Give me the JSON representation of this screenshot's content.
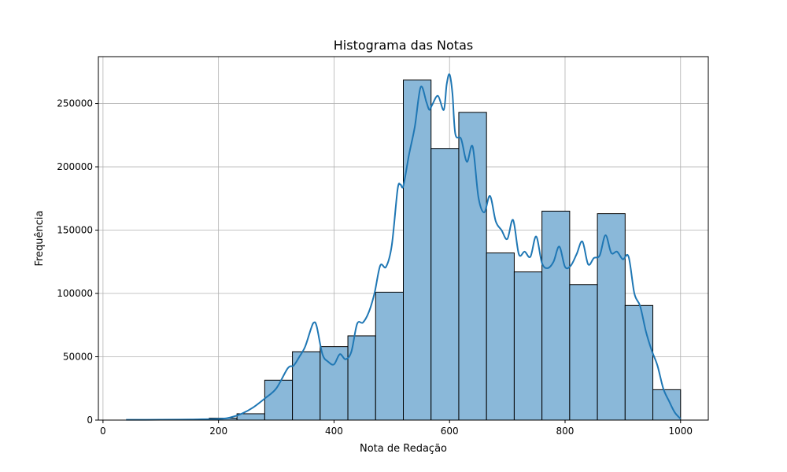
{
  "chart_data": {
    "type": "bar",
    "subtype": "histogram",
    "title": "Histograma das Notas",
    "xlabel": "Nota de Redação",
    "ylabel": "Frequência",
    "xlim": [
      -8,
      1048
    ],
    "ylim": [
      0,
      287000
    ],
    "grid": true,
    "xticks": [
      0,
      200,
      400,
      600,
      800,
      1000
    ],
    "yticks": [
      0,
      50000,
      100000,
      150000,
      200000,
      250000
    ],
    "colors": {
      "bar_fill": "#8ab8d9",
      "bar_edge": "#000000",
      "kde_line": "#1f77b4",
      "grid": "#b0b0b0"
    },
    "bins": [
      {
        "x0": 40,
        "x1": 88,
        "value": 0
      },
      {
        "x0": 88,
        "x1": 136,
        "value": 0
      },
      {
        "x0": 136,
        "x1": 184,
        "value": 0
      },
      {
        "x0": 184,
        "x1": 232,
        "value": 1500
      },
      {
        "x0": 232,
        "x1": 280,
        "value": 5000
      },
      {
        "x0": 280,
        "x1": 328,
        "value": 31500
      },
      {
        "x0": 328,
        "x1": 376,
        "value": 54000
      },
      {
        "x0": 376,
        "x1": 424,
        "value": 58000
      },
      {
        "x0": 424,
        "x1": 472,
        "value": 66500
      },
      {
        "x0": 472,
        "x1": 520,
        "value": 101000
      },
      {
        "x0": 520,
        "x1": 568,
        "value": 268500
      },
      {
        "x0": 568,
        "x1": 616,
        "value": 214500
      },
      {
        "x0": 616,
        "x1": 664,
        "value": 243000
      },
      {
        "x0": 664,
        "x1": 712,
        "value": 132000
      },
      {
        "x0": 712,
        "x1": 760,
        "value": 117000
      },
      {
        "x0": 760,
        "x1": 808,
        "value": 165000
      },
      {
        "x0": 808,
        "x1": 856,
        "value": 107000
      },
      {
        "x0": 856,
        "x1": 904,
        "value": 163000
      },
      {
        "x0": 904,
        "x1": 952,
        "value": 90500
      },
      {
        "x0": 952,
        "x1": 1000,
        "value": 24000
      }
    ],
    "kde": {
      "x": [
        40,
        100,
        150,
        200,
        220,
        240,
        260,
        280,
        300,
        320,
        330,
        340,
        350,
        360,
        365,
        370,
        380,
        390,
        400,
        410,
        420,
        430,
        440,
        450,
        460,
        470,
        480,
        490,
        500,
        510,
        515,
        520,
        530,
        540,
        550,
        560,
        565,
        570,
        580,
        590,
        595,
        600,
        605,
        610,
        620,
        630,
        640,
        650,
        660,
        670,
        680,
        690,
        700,
        710,
        720,
        730,
        740,
        750,
        760,
        770,
        780,
        790,
        800,
        810,
        820,
        830,
        840,
        850,
        860,
        870,
        880,
        890,
        900,
        910,
        920,
        930,
        940,
        950,
        960,
        970,
        980,
        990,
        1000
      ],
      "y": [
        200,
        300,
        500,
        900,
        2000,
        5000,
        10000,
        17000,
        25000,
        41000,
        43000,
        50000,
        58000,
        72000,
        77000,
        74000,
        52000,
        46000,
        44000,
        52000,
        48000,
        54000,
        76000,
        77000,
        85000,
        100000,
        122000,
        121000,
        138000,
        182000,
        186000,
        185000,
        210000,
        232000,
        263000,
        251000,
        245000,
        249000,
        256000,
        245000,
        265000,
        273000,
        258000,
        226000,
        222000,
        204000,
        216000,
        176000,
        164000,
        177000,
        157000,
        150000,
        143000,
        158000,
        131000,
        133000,
        129000,
        145000,
        124000,
        120000,
        125000,
        137000,
        121000,
        122000,
        131000,
        141000,
        123000,
        128000,
        130000,
        146000,
        132000,
        133000,
        127000,
        129000,
        100000,
        90000,
        70000,
        55000,
        43000,
        25000,
        15000,
        6000,
        1000
      ]
    }
  }
}
